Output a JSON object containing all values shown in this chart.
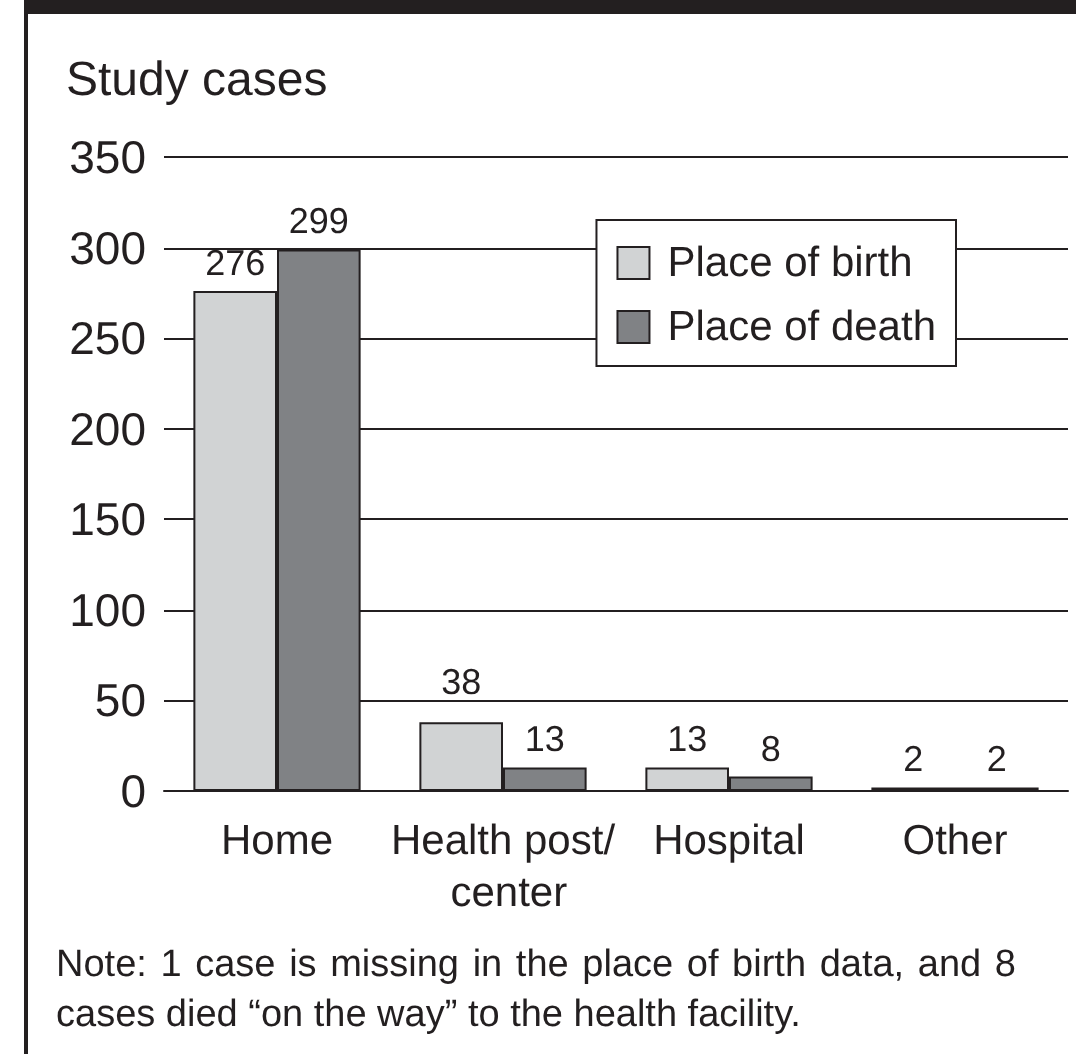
{
  "chart_data": {
    "type": "bar",
    "ylabel": "Study cases",
    "categories": [
      "Home",
      "Health post/ center",
      "Hospital",
      "Other"
    ],
    "series": [
      {
        "name": "Place of birth",
        "color": "#d1d3d4",
        "values": [
          276,
          38,
          13,
          2
        ]
      },
      {
        "name": "Place of death",
        "color": "#808285",
        "values": [
          299,
          13,
          8,
          2
        ]
      }
    ],
    "ylim": [
      0,
      350
    ],
    "yticks": [
      0,
      50,
      100,
      150,
      200,
      250,
      300,
      350
    ],
    "grid": "y",
    "legend": "top right",
    "data_labels": true,
    "annotations": [
      "Note: 1 case is missing in the place of birth data, and 8 cases died “on the way” to the health facility."
    ]
  }
}
